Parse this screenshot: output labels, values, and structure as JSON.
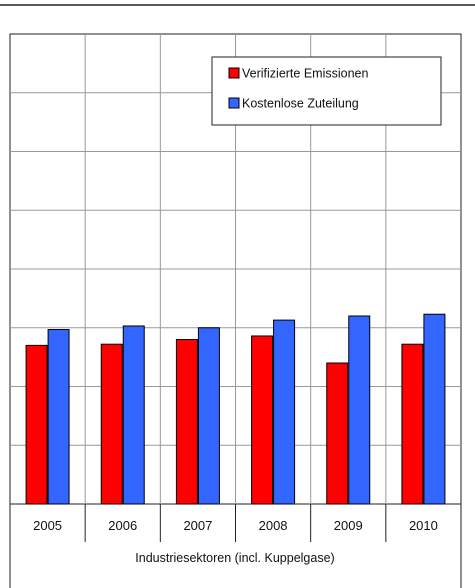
{
  "chart_data": {
    "type": "bar",
    "title": "",
    "xlabel": "Industriesektoren (incl. Kuppelgase)",
    "ylabel": "",
    "categories": [
      "2005",
      "2006",
      "2007",
      "2008",
      "2009",
      "2010"
    ],
    "series": [
      {
        "name": "Verifizierte Emissionen",
        "color": "#ff0000",
        "values": [
          2.7,
          2.72,
          2.8,
          2.86,
          2.4,
          2.72
        ]
      },
      {
        "name": "Kostenlose Zuteilung",
        "color": "#3366ff",
        "values": [
          2.97,
          3.03,
          3.0,
          3.13,
          3.2,
          3.23
        ]
      }
    ],
    "ylim": [
      0,
      8
    ],
    "grid": true,
    "legend_position": "top-right"
  }
}
